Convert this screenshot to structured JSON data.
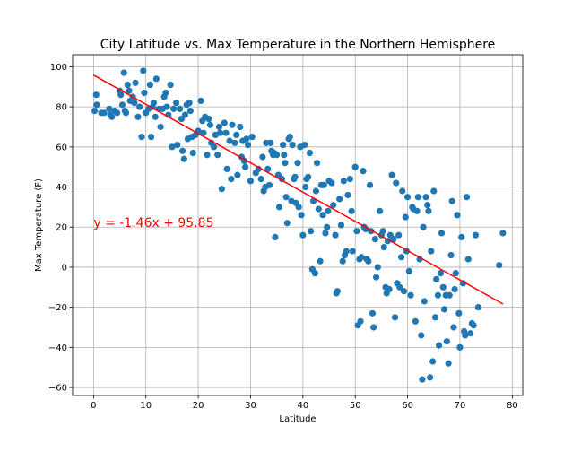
{
  "chart_data": {
    "type": "scatter",
    "title": "City Latitude vs. Max Temperature in the Northern Hemisphere",
    "xlabel": "Latitude",
    "ylabel": "Max Temperature (F)",
    "xlim": [
      -4,
      82
    ],
    "ylim": [
      -64,
      106
    ],
    "xticks": [
      0,
      10,
      20,
      30,
      40,
      50,
      60,
      70,
      80
    ],
    "yticks": [
      -60,
      -40,
      -20,
      0,
      20,
      40,
      60,
      80,
      100
    ],
    "grid": true,
    "colors": {
      "points": "#1f77b4",
      "regression": "#ff0000",
      "annotation": "#ff0000"
    },
    "regression": {
      "slope": -1.46,
      "intercept": 95.85,
      "x_range": [
        0,
        78.2
      ]
    },
    "annotation": {
      "text": "y = -1.46x + 95.85",
      "x": 0,
      "y": 20
    },
    "series": [
      {
        "points": [
          [
            0.2,
            78
          ],
          [
            0.5,
            86
          ],
          [
            0.6,
            81
          ],
          [
            1.5,
            77
          ],
          [
            2.0,
            77
          ],
          [
            3,
            79
          ],
          [
            3.2,
            76
          ],
          [
            3.5,
            75
          ],
          [
            4,
            78
          ],
          [
            4.5,
            77
          ],
          [
            5,
            88
          ],
          [
            5.2,
            86
          ],
          [
            5.5,
            81
          ],
          [
            5.8,
            97
          ],
          [
            6,
            78
          ],
          [
            6.2,
            77
          ],
          [
            6.5,
            91
          ],
          [
            6.8,
            88
          ],
          [
            7,
            83
          ],
          [
            7.5,
            85
          ],
          [
            7.8,
            82
          ],
          [
            8,
            92
          ],
          [
            8.5,
            75
          ],
          [
            8.8,
            80
          ],
          [
            9.2,
            65
          ],
          [
            9.5,
            98
          ],
          [
            9.7,
            87
          ],
          [
            10,
            77
          ],
          [
            10.5,
            79
          ],
          [
            10.8,
            91
          ],
          [
            11,
            65
          ],
          [
            11.3,
            80
          ],
          [
            11.5,
            82
          ],
          [
            11.8,
            75
          ],
          [
            12,
            94
          ],
          [
            12.5,
            79
          ],
          [
            12.8,
            70
          ],
          [
            13.2,
            79
          ],
          [
            13.5,
            85
          ],
          [
            13.8,
            87
          ],
          [
            14,
            80
          ],
          [
            14.3,
            76
          ],
          [
            14.7,
            91
          ],
          [
            15,
            60
          ],
          [
            15.3,
            79
          ],
          [
            15.8,
            82
          ],
          [
            16,
            61
          ],
          [
            16.5,
            79
          ],
          [
            16.8,
            74
          ],
          [
            17,
            58
          ],
          [
            17.3,
            54
          ],
          [
            17.5,
            76
          ],
          [
            17.8,
            81
          ],
          [
            18,
            64
          ],
          [
            18.3,
            82
          ],
          [
            18.5,
            78
          ],
          [
            18.8,
            65
          ],
          [
            19,
            57
          ],
          [
            19.5,
            66
          ],
          [
            20,
            68
          ],
          [
            20.5,
            83
          ],
          [
            20.8,
            73
          ],
          [
            21,
            67
          ],
          [
            21.3,
            75
          ],
          [
            21.7,
            56
          ],
          [
            22,
            74
          ],
          [
            22.3,
            71
          ],
          [
            22.5,
            62
          ],
          [
            23,
            60
          ],
          [
            23.3,
            66
          ],
          [
            23.7,
            56
          ],
          [
            24,
            70
          ],
          [
            24.2,
            67
          ],
          [
            24.5,
            39
          ],
          [
            25,
            72
          ],
          [
            25.3,
            67
          ],
          [
            25.5,
            49
          ],
          [
            26,
            63
          ],
          [
            26.3,
            44
          ],
          [
            26.5,
            71
          ],
          [
            27,
            62
          ],
          [
            27.3,
            66
          ],
          [
            27.5,
            46
          ],
          [
            28,
            70
          ],
          [
            28.3,
            55
          ],
          [
            28.5,
            63
          ],
          [
            28.8,
            53
          ],
          [
            29,
            50
          ],
          [
            29.2,
            64
          ],
          [
            29.5,
            61
          ],
          [
            30,
            43
          ],
          [
            30.3,
            65
          ],
          [
            31,
            47
          ],
          [
            31.5,
            49
          ],
          [
            32,
            44
          ],
          [
            32.3,
            55
          ],
          [
            32.5,
            38
          ],
          [
            32.8,
            40
          ],
          [
            33,
            62
          ],
          [
            33.3,
            49
          ],
          [
            33.6,
            41
          ],
          [
            33.8,
            62
          ],
          [
            34,
            58
          ],
          [
            34.3,
            56
          ],
          [
            34.5,
            57
          ],
          [
            34.7,
            15
          ],
          [
            35,
            56
          ],
          [
            35.3,
            46
          ],
          [
            35.5,
            30
          ],
          [
            36,
            44
          ],
          [
            36.2,
            61
          ],
          [
            36.4,
            56
          ],
          [
            36.6,
            52
          ],
          [
            36.8,
            35
          ],
          [
            37,
            22
          ],
          [
            37.3,
            64
          ],
          [
            37.5,
            65
          ],
          [
            37.8,
            33
          ],
          [
            38,
            61
          ],
          [
            38.3,
            44
          ],
          [
            38.5,
            45
          ],
          [
            38.7,
            32
          ],
          [
            39,
            52
          ],
          [
            39.2,
            30
          ],
          [
            39.5,
            60
          ],
          [
            39.7,
            26
          ],
          [
            40,
            16
          ],
          [
            40.3,
            61
          ],
          [
            40.5,
            40
          ],
          [
            40.7,
            44
          ],
          [
            41,
            45
          ],
          [
            41.3,
            57
          ],
          [
            41.5,
            18
          ],
          [
            41.8,
            -1
          ],
          [
            42,
            33
          ],
          [
            42.3,
            -3
          ],
          [
            42.5,
            38
          ],
          [
            42.7,
            52
          ],
          [
            43,
            29
          ],
          [
            43.3,
            3
          ],
          [
            43.5,
            41
          ],
          [
            43.8,
            26
          ],
          [
            44,
            41
          ],
          [
            44.3,
            17
          ],
          [
            44.6,
            20
          ],
          [
            44.8,
            28
          ],
          [
            45,
            43
          ],
          [
            45.5,
            42
          ],
          [
            45.8,
            31
          ],
          [
            46.2,
            16
          ],
          [
            46.4,
            -13
          ],
          [
            46.6,
            -12
          ],
          [
            47,
            34
          ],
          [
            47.3,
            21
          ],
          [
            47.6,
            3
          ],
          [
            47.8,
            43
          ],
          [
            48,
            6
          ],
          [
            48.3,
            8
          ],
          [
            48.6,
            36
          ],
          [
            49,
            44
          ],
          [
            49.3,
            28
          ],
          [
            49.5,
            8
          ],
          [
            50,
            50
          ],
          [
            50.3,
            18
          ],
          [
            50.5,
            -29
          ],
          [
            50.8,
            4
          ],
          [
            51,
            -27
          ],
          [
            51.2,
            5
          ],
          [
            51.5,
            48
          ],
          [
            51.7,
            20
          ],
          [
            52,
            19
          ],
          [
            52.2,
            4
          ],
          [
            52.5,
            3
          ],
          [
            52.8,
            41
          ],
          [
            53,
            18
          ],
          [
            53.3,
            -23
          ],
          [
            53.5,
            -30
          ],
          [
            53.8,
            14
          ],
          [
            54,
            -5
          ],
          [
            54.3,
            0
          ],
          [
            54.7,
            28
          ],
          [
            55,
            16
          ],
          [
            55.3,
            18
          ],
          [
            55.5,
            10
          ],
          [
            55.8,
            -10
          ],
          [
            56,
            -13
          ],
          [
            56.2,
            13
          ],
          [
            56.5,
            -11
          ],
          [
            56.7,
            16
          ],
          [
            57,
            46
          ],
          [
            57.3,
            14
          ],
          [
            57.6,
            -25
          ],
          [
            57.8,
            42
          ],
          [
            58,
            -8
          ],
          [
            58.3,
            16
          ],
          [
            58.5,
            -10
          ],
          [
            58.8,
            5
          ],
          [
            59,
            38
          ],
          [
            59.3,
            -12
          ],
          [
            59.6,
            25
          ],
          [
            59.8,
            8
          ],
          [
            60,
            35
          ],
          [
            60.3,
            -2
          ],
          [
            60.6,
            -14
          ],
          [
            60.9,
            30
          ],
          [
            61.1,
            29
          ],
          [
            61.5,
            -27
          ],
          [
            61.8,
            28
          ],
          [
            62,
            35
          ],
          [
            62.3,
            4
          ],
          [
            62.6,
            -34
          ],
          [
            62.8,
            -56
          ],
          [
            63,
            20
          ],
          [
            63.2,
            -17
          ],
          [
            63.5,
            35
          ],
          [
            63.8,
            31
          ],
          [
            64,
            28
          ],
          [
            64.3,
            -55
          ],
          [
            64.5,
            8
          ],
          [
            64.8,
            -47
          ],
          [
            65,
            38
          ],
          [
            65.3,
            -25
          ],
          [
            65.5,
            -6
          ],
          [
            65.8,
            -14
          ],
          [
            66,
            -39
          ],
          [
            66.3,
            -3
          ],
          [
            66.5,
            17
          ],
          [
            66.8,
            -10
          ],
          [
            67,
            -21
          ],
          [
            67.3,
            -14
          ],
          [
            67.5,
            -37
          ],
          [
            67.8,
            -48
          ],
          [
            68,
            -14
          ],
          [
            68.3,
            6
          ],
          [
            68.5,
            33
          ],
          [
            68.8,
            -30
          ],
          [
            69,
            -11
          ],
          [
            69.2,
            -3
          ],
          [
            69.5,
            26
          ],
          [
            69.8,
            -23
          ],
          [
            70,
            -40
          ],
          [
            70.3,
            15
          ],
          [
            70.6,
            -8
          ],
          [
            70.8,
            -32
          ],
          [
            71,
            -34
          ],
          [
            71.3,
            35
          ],
          [
            71.6,
            4
          ],
          [
            72,
            -33
          ],
          [
            72.3,
            -28
          ],
          [
            72.6,
            -29
          ],
          [
            73,
            16
          ],
          [
            73.5,
            -20
          ],
          [
            77.5,
            1
          ],
          [
            78.2,
            17
          ]
        ]
      }
    ]
  }
}
